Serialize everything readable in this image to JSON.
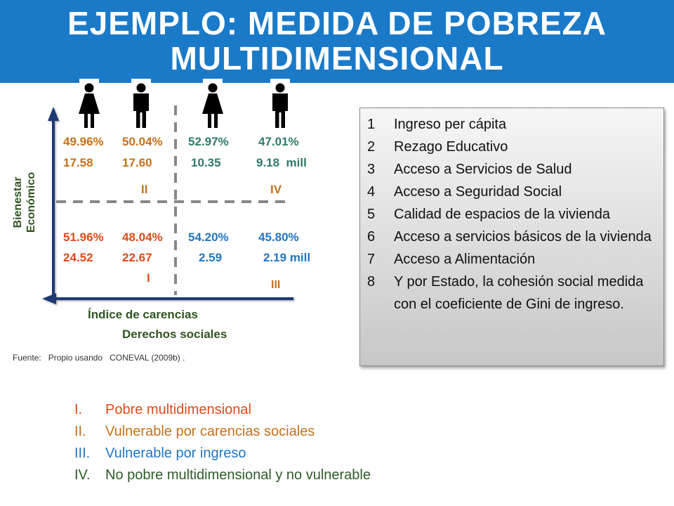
{
  "title": {
    "line1": "EJEMPLO: MEDIDA DE POBREZA",
    "line2": "MULTIDIMENSIONAL"
  },
  "icons": [
    "woman-icon",
    "man-icon",
    "woman-icon",
    "man-icon"
  ],
  "colors": {
    "banner": "#1a7ac8",
    "orange": "#c5711a",
    "green": "#2e7a6b",
    "red": "#e04a1a",
    "blue": "#2176c4",
    "axis_text": "#2f5420"
  },
  "quadrants": {
    "II": {
      "label": "II",
      "pct": [
        "49.96%",
        "50.04%"
      ],
      "mill": [
        "17.58",
        "17.60"
      ]
    },
    "IV": {
      "label": "IV",
      "pct": [
        "52.97%",
        "47.01%"
      ],
      "mill": [
        "10.35",
        "9.18  mill"
      ]
    },
    "I": {
      "label": "I",
      "pct": [
        "51.96%",
        "48.04%"
      ],
      "mill": [
        "24.52",
        "22.67"
      ]
    },
    "III": {
      "label": "III",
      "pct": [
        "54.20%",
        "45.80%"
      ],
      "mill": [
        "2.59",
        "2.19 mill"
      ]
    }
  },
  "axes": {
    "y": [
      "Bienestar",
      "Económico"
    ],
    "x": [
      "Índice de carencias",
      "Derechos sociales"
    ]
  },
  "source": "Fuente:   Propio usando   CONEVAL (2009b) .",
  "dimensions": [
    {
      "n": "1",
      "t": "Ingreso per cápita"
    },
    {
      "n": "2",
      "t": "Rezago Educativo"
    },
    {
      "n": "3",
      "t": "Acceso a Servicios de Salud"
    },
    {
      "n": "4",
      "t": "Acceso a Seguridad Social"
    },
    {
      "n": "5",
      "t": "Calidad de espacios de la vivienda"
    },
    {
      "n": "6",
      "t": "Acceso a servicios básicos de la vivienda"
    },
    {
      "n": "7",
      "t": "Acceso a Alimentación"
    },
    {
      "n": "8",
      "t": "Y por Estado, la cohesión social medida con el coeficiente de  Gini de ingreso."
    }
  ],
  "legend": [
    {
      "n": "I.",
      "t": "Pobre multidimensional",
      "color": "#e04a1a"
    },
    {
      "n": "II.",
      "t": "Vulnerable por carencias sociales",
      "color": "#c5711a"
    },
    {
      "n": "III.",
      "t": "Vulnerable por ingreso",
      "color": "#2176c4"
    },
    {
      "n": "IV.",
      "t": "No pobre multidimensional y no vulnerable",
      "color": "#2f5a2a"
    }
  ]
}
